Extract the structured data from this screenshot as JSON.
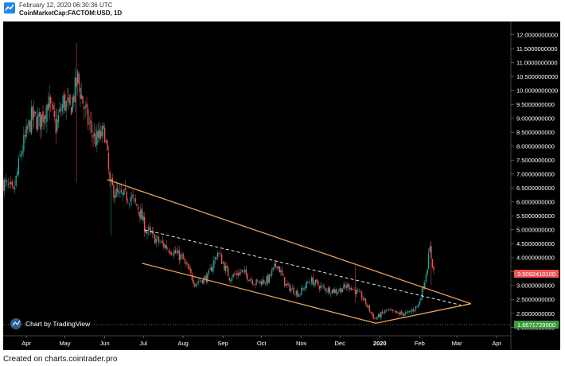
{
  "header": {
    "timestamp": "February 12, 2020 06:30:36 UTC",
    "symbol": "CoinMarketCap:FACTOM:USD, 1D"
  },
  "footer": {
    "source": "Created on charts.cointrader.pro"
  },
  "watermark": {
    "label": "Chart by TradingView"
  },
  "price_tags": {
    "last_price": "3.5092410100",
    "low_price": "1.6671729900"
  },
  "colors": {
    "background": "#000000",
    "up": "#26a69a",
    "down": "#ef5350",
    "trendline": "#e8a05c",
    "dashed": "#ffffff",
    "last_tag": "#ef5350",
    "low_tag": "#3d9a3d"
  },
  "chart_data": {
    "type": "candlestick",
    "interval": "1D",
    "ylim": [
      1.2,
      12.3
    ],
    "y_ticks": [
      "12.0000000000",
      "11.5000000000",
      "11.0000000000",
      "10.5000000000",
      "10.0000000000",
      "9.5000000000",
      "9.0000000000",
      "8.5000000000",
      "8.0000000000",
      "7.5000000000",
      "7.0000000000",
      "6.5000000000",
      "6.0000000000",
      "5.5000000000",
      "5.0000000000",
      "4.5000000000",
      "4.0000000000",
      "3.5000000000",
      "3.0000000000",
      "2.5000000000",
      "2.0000000000",
      "1.5000000000"
    ],
    "x_ticks": [
      {
        "label": "Apr",
        "date": "2019-04-01"
      },
      {
        "label": "May",
        "date": "2019-05-01"
      },
      {
        "label": "Jun",
        "date": "2019-06-01"
      },
      {
        "label": "Jul",
        "date": "2019-07-01"
      },
      {
        "label": "Aug",
        "date": "2019-08-01"
      },
      {
        "label": "Sep",
        "date": "2019-09-01"
      },
      {
        "label": "Oct",
        "date": "2019-10-01"
      },
      {
        "label": "Nov",
        "date": "2019-11-01"
      },
      {
        "label": "Dec",
        "date": "2019-12-01"
      },
      {
        "label": "2020",
        "date": "2020-01-01"
      },
      {
        "label": "Feb",
        "date": "2020-02-01"
      },
      {
        "label": "Mar",
        "date": "2020-03-01"
      },
      {
        "label": "Apr",
        "date": "2020-04-01"
      }
    ],
    "x_range": [
      "2019-03-14",
      "2020-04-12"
    ],
    "price_path": [
      [
        "2019-03-14",
        6.7
      ],
      [
        "2019-03-22",
        6.3
      ],
      [
        "2019-03-28",
        7.8
      ],
      [
        "2019-04-05",
        9.0
      ],
      [
        "2019-04-12",
        8.9
      ],
      [
        "2019-04-18",
        9.6
      ],
      [
        "2019-04-24",
        8.7
      ],
      [
        "2019-04-30",
        9.6
      ],
      [
        "2019-05-05",
        9.3
      ],
      [
        "2019-05-11",
        10.4
      ],
      [
        "2019-05-18",
        9.0
      ],
      [
        "2019-05-25",
        8.2
      ],
      [
        "2019-06-01",
        8.5
      ],
      [
        "2019-06-05",
        6.6
      ],
      [
        "2019-06-12",
        6.2
      ],
      [
        "2019-06-20",
        6.2
      ],
      [
        "2019-06-27",
        5.8
      ],
      [
        "2019-07-03",
        5.0
      ],
      [
        "2019-07-12",
        4.6
      ],
      [
        "2019-07-22",
        4.3
      ],
      [
        "2019-07-31",
        4.0
      ],
      [
        "2019-08-10",
        3.1
      ],
      [
        "2019-08-20",
        3.3
      ],
      [
        "2019-08-28",
        4.2
      ],
      [
        "2019-09-06",
        3.3
      ],
      [
        "2019-09-16",
        3.5
      ],
      [
        "2019-09-26",
        3.1
      ],
      [
        "2019-10-06",
        3.2
      ],
      [
        "2019-10-13",
        3.8
      ],
      [
        "2019-10-20",
        3.0
      ],
      [
        "2019-10-30",
        2.7
      ],
      [
        "2019-11-08",
        3.2
      ],
      [
        "2019-11-18",
        2.9
      ],
      [
        "2019-11-28",
        2.8
      ],
      [
        "2019-12-08",
        3.0
      ],
      [
        "2019-12-18",
        2.6
      ],
      [
        "2019-12-28",
        1.8
      ],
      [
        "2020-01-06",
        2.1
      ],
      [
        "2020-01-15",
        2.0
      ],
      [
        "2020-01-23",
        2.0
      ],
      [
        "2020-01-31",
        2.3
      ],
      [
        "2020-02-05",
        3.2
      ],
      [
        "2020-02-09",
        4.3
      ],
      [
        "2020-02-12",
        3.51
      ]
    ],
    "spikes": [
      {
        "date": "2019-05-10",
        "high": 11.7,
        "low": 6.7
      },
      {
        "date": "2019-06-06",
        "high": 7.0,
        "low": 4.8
      },
      {
        "date": "2019-12-13",
        "high": 3.7,
        "low": 2.4
      },
      {
        "date": "2020-02-10",
        "high": 4.6,
        "low": 3.0
      }
    ],
    "lines": [
      {
        "style": "solid",
        "from": [
          "2019-06-03",
          6.8
        ],
        "to": [
          "2020-03-12",
          2.35
        ]
      },
      {
        "style": "solid",
        "from": [
          "2019-06-30",
          3.8
        ],
        "to": [
          "2019-12-29",
          1.65
        ]
      },
      {
        "style": "solid",
        "from": [
          "2019-12-29",
          1.65
        ],
        "to": [
          "2020-03-12",
          2.35
        ]
      },
      {
        "style": "dashed",
        "from": [
          "2019-07-02",
          5.0
        ],
        "to": [
          "2020-03-04",
          2.3
        ]
      }
    ]
  }
}
